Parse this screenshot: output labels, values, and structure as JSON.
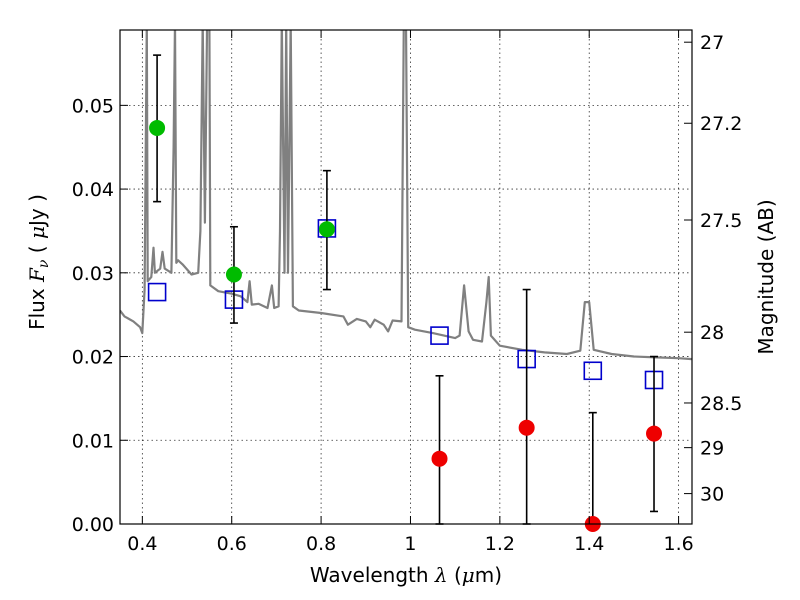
{
  "chart_data": {
    "type": "scatter",
    "title": "",
    "x_axis": {
      "label_parts": [
        "Wavelength  ",
        "λ",
        " (",
        "μ",
        "m)"
      ],
      "range": [
        0.35,
        1.63
      ],
      "ticks": [
        0.4,
        0.6,
        0.8,
        1.0,
        1.2,
        1.4,
        1.6
      ],
      "tick_labels": [
        "0.4",
        "0.6",
        "0.8",
        "1",
        "1.2",
        "1.4",
        "1.6"
      ]
    },
    "y_axis_left": {
      "label_parts": [
        "Flux  ",
        "F",
        "ν",
        "  (  ",
        "μ",
        "Jy  )"
      ],
      "range": [
        0.0,
        0.059
      ],
      "ticks": [
        0.0,
        0.01,
        0.02,
        0.03,
        0.04,
        0.05
      ],
      "tick_labels": [
        "0.00",
        "0.01",
        "0.02",
        "0.03",
        "0.04",
        "0.05"
      ]
    },
    "y_axis_right": {
      "label": "Magnitude (AB)",
      "ticks": [
        27,
        27.2,
        27.5,
        28,
        28.5,
        29,
        30
      ],
      "tick_labels": [
        "27",
        "27.2",
        "27.5",
        "28",
        "28.5",
        "29",
        "30"
      ]
    },
    "grid": true,
    "legend": "none",
    "series": [
      {
        "kind": "line",
        "color": "#808080",
        "points": [
          [
            0.35,
            0.0255
          ],
          [
            0.36,
            0.0248
          ],
          [
            0.38,
            0.0242
          ],
          [
            0.395,
            0.0235
          ],
          [
            0.4,
            0.0228
          ],
          [
            0.405,
            0.028
          ],
          [
            0.41,
            0.06
          ],
          [
            0.412,
            0.029
          ],
          [
            0.42,
            0.0295
          ],
          [
            0.425,
            0.033
          ],
          [
            0.428,
            0.03
          ],
          [
            0.44,
            0.0305
          ],
          [
            0.445,
            0.0325
          ],
          [
            0.45,
            0.0305
          ],
          [
            0.465,
            0.03
          ],
          [
            0.47,
            0.045
          ],
          [
            0.473,
            0.06
          ],
          [
            0.476,
            0.0312
          ],
          [
            0.48,
            0.0315
          ],
          [
            0.49,
            0.031
          ],
          [
            0.51,
            0.0298
          ],
          [
            0.525,
            0.03
          ],
          [
            0.53,
            0.035
          ],
          [
            0.535,
            0.06
          ],
          [
            0.54,
            0.036
          ],
          [
            0.545,
            0.06
          ],
          [
            0.55,
            0.06
          ],
          [
            0.552,
            0.0285
          ],
          [
            0.57,
            0.0278
          ],
          [
            0.6,
            0.0275
          ],
          [
            0.62,
            0.0272
          ],
          [
            0.635,
            0.0265
          ],
          [
            0.64,
            0.029
          ],
          [
            0.645,
            0.0262
          ],
          [
            0.66,
            0.0263
          ],
          [
            0.68,
            0.0258
          ],
          [
            0.69,
            0.0285
          ],
          [
            0.695,
            0.0258
          ],
          [
            0.705,
            0.026
          ],
          [
            0.708,
            0.035
          ],
          [
            0.712,
            0.06
          ],
          [
            0.718,
            0.03
          ],
          [
            0.722,
            0.06
          ],
          [
            0.726,
            0.03
          ],
          [
            0.732,
            0.06
          ],
          [
            0.737,
            0.026
          ],
          [
            0.75,
            0.0255
          ],
          [
            0.8,
            0.0252
          ],
          [
            0.85,
            0.0248
          ],
          [
            0.86,
            0.0238
          ],
          [
            0.88,
            0.0245
          ],
          [
            0.9,
            0.0242
          ],
          [
            0.91,
            0.0235
          ],
          [
            0.92,
            0.0244
          ],
          [
            0.94,
            0.0238
          ],
          [
            0.95,
            0.023
          ],
          [
            0.96,
            0.0243
          ],
          [
            0.98,
            0.0242
          ],
          [
            0.985,
            0.06
          ],
          [
            0.99,
            0.06
          ],
          [
            0.995,
            0.0235
          ],
          [
            1.01,
            0.0232
          ],
          [
            1.05,
            0.0228
          ],
          [
            1.1,
            0.0222
          ],
          [
            1.11,
            0.0225
          ],
          [
            1.12,
            0.0285
          ],
          [
            1.13,
            0.023
          ],
          [
            1.14,
            0.022
          ],
          [
            1.16,
            0.0218
          ],
          [
            1.17,
            0.0265
          ],
          [
            1.175,
            0.0295
          ],
          [
            1.18,
            0.0225
          ],
          [
            1.2,
            0.0213
          ],
          [
            1.25,
            0.0208
          ],
          [
            1.3,
            0.0205
          ],
          [
            1.35,
            0.0203
          ],
          [
            1.38,
            0.0207
          ],
          [
            1.39,
            0.0265
          ],
          [
            1.4,
            0.0265
          ],
          [
            1.41,
            0.0208
          ],
          [
            1.45,
            0.0203
          ],
          [
            1.5,
            0.02
          ],
          [
            1.55,
            0.0199
          ],
          [
            1.6,
            0.0198
          ],
          [
            1.63,
            0.0197
          ]
        ]
      },
      {
        "kind": "open-square",
        "color": "#0000cc",
        "points": [
          [
            0.433,
            0.0277
          ],
          [
            0.605,
            0.0268
          ],
          [
            0.813,
            0.0353
          ],
          [
            1.065,
            0.0225
          ],
          [
            1.26,
            0.0197
          ],
          [
            1.408,
            0.0183
          ],
          [
            1.545,
            0.0172
          ]
        ]
      },
      {
        "kind": "filled-circle-errorbar",
        "color": "#00bb00",
        "points": [
          {
            "x": 0.433,
            "y": 0.0473,
            "lo": 0.0385,
            "hi": 0.056
          },
          {
            "x": 0.605,
            "y": 0.0298,
            "lo": 0.024,
            "hi": 0.0355
          },
          {
            "x": 0.813,
            "y": 0.0352,
            "lo": 0.028,
            "hi": 0.0422
          }
        ]
      },
      {
        "kind": "filled-circle-errorbar",
        "color": "#ee0000",
        "points": [
          {
            "x": 1.065,
            "y": 0.0078,
            "lo": 0.0,
            "hi": 0.0177
          },
          {
            "x": 1.26,
            "y": 0.0115,
            "lo": 0.0,
            "hi": 0.028
          },
          {
            "x": 1.408,
            "y": 0.0,
            "lo": 0.0,
            "hi": 0.0133
          },
          {
            "x": 1.545,
            "y": 0.0108,
            "lo": 0.0015,
            "hi": 0.02
          }
        ]
      }
    ]
  }
}
